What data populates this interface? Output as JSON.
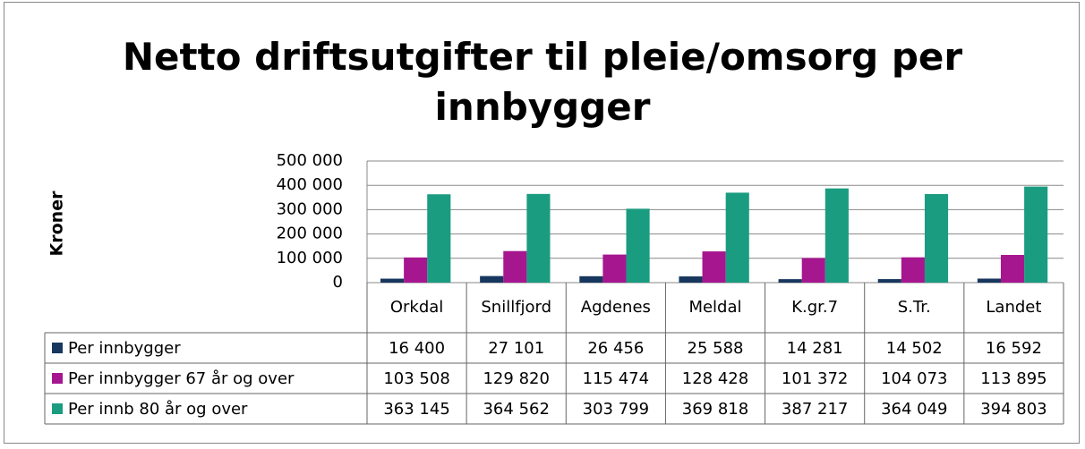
{
  "chart_data": {
    "type": "bar",
    "title": "Netto driftsutgifter til pleie/omsorg per innbygger",
    "y_label": "Kroner",
    "categories": [
      "Orkdal",
      "Snillfjord",
      "Agdenes",
      "Meldal",
      "K.gr.7",
      "S.Tr.",
      "Landet"
    ],
    "series": [
      {
        "name": "Per innbygger",
        "color": "#17375e",
        "values": [
          16400,
          27101,
          26456,
          25588,
          14281,
          14502,
          16592
        ],
        "value_labels": [
          "16 400",
          "27 101",
          "26 456",
          "25 588",
          "14 281",
          "14 502",
          "16 592"
        ]
      },
      {
        "name": "Per innbygger 67 år og over",
        "color": "#a6168f",
        "values": [
          103508,
          129820,
          115474,
          128428,
          101372,
          104073,
          113895
        ],
        "value_labels": [
          "103 508",
          "129 820",
          "115 474",
          "128 428",
          "101 372",
          "104 073",
          "113 895"
        ]
      },
      {
        "name": "Per innb 80 år og over",
        "color": "#1a9c80",
        "values": [
          363145,
          364562,
          303799,
          369818,
          387217,
          364049,
          394803
        ],
        "value_labels": [
          "363 145",
          "364 562",
          "303 799",
          "369 818",
          "387 217",
          "364 049",
          "394 803"
        ]
      }
    ],
    "ylim": [
      0,
      500000
    ],
    "yticks": [
      0,
      {
        "value": 100000,
        "label": "100 000"
      },
      {
        "value": 200000,
        "label": "200 000"
      },
      {
        "value": 300000,
        "label": "300 000"
      },
      {
        "value": 400000,
        "label": "400 000"
      },
      {
        "value": 500000,
        "label": "500 000"
      }
    ],
    "grid": true
  }
}
